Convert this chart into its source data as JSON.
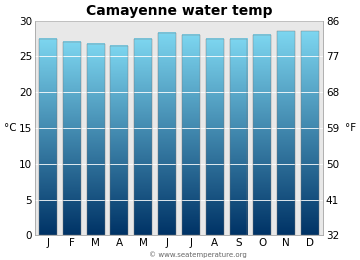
{
  "title": "Camayenne water temp",
  "months": [
    "J",
    "F",
    "M",
    "A",
    "M",
    "J",
    "J",
    "A",
    "S",
    "O",
    "N",
    "D"
  ],
  "values_c": [
    27.5,
    27.0,
    26.8,
    26.5,
    27.5,
    28.3,
    28.0,
    27.5,
    27.5,
    28.0,
    28.5,
    28.5
  ],
  "ylim_c": [
    0,
    30
  ],
  "yticks_c": [
    0,
    5,
    10,
    15,
    20,
    25,
    30
  ],
  "yticks_f": [
    32,
    41,
    50,
    59,
    68,
    77,
    86
  ],
  "ylabel_left": "°C",
  "ylabel_right": "°F",
  "bar_color_top": "#7dd6f0",
  "bar_color_bottom": "#003366",
  "background_color": "#ffffff",
  "plot_bg_color": "#e8e8e8",
  "title_fontsize": 10,
  "axis_fontsize": 7.5,
  "watermark": "© www.seatemperature.org"
}
